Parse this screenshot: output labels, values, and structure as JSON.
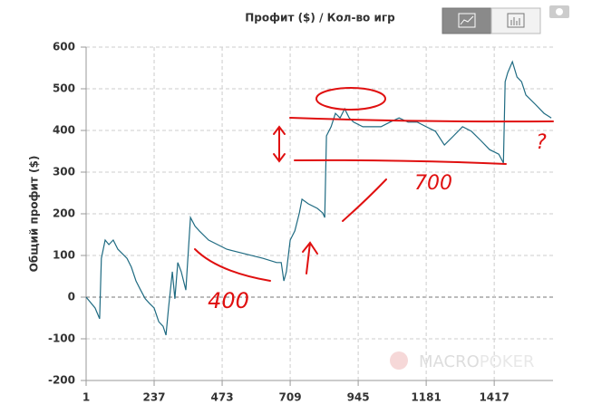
{
  "chart_data": {
    "type": "line",
    "title": "Профит ($) / Кол-во игр",
    "y_label": "Общий профит ($)",
    "watermark": [
      "MACRO",
      "POKER"
    ],
    "annotations": [
      "400",
      "700",
      "?"
    ],
    "xlim": [
      1,
      1621
    ],
    "xticks": [
      1,
      237,
      473,
      709,
      945,
      1181,
      1417
    ],
    "ylim": [
      -200,
      600
    ],
    "yticks": [
      -200,
      -100,
      0,
      100,
      200,
      300,
      400,
      500,
      600
    ],
    "grid": true,
    "series": [
      {
        "color": "#1f6b82",
        "x": [
          1,
          32,
          48,
          54,
          67,
          80,
          95,
          111,
          127,
          143,
          158,
          174,
          190,
          206,
          221,
          237,
          253,
          268,
          278,
          287,
          300,
          309,
          319,
          331,
          347,
          363,
          379,
          394,
          426,
          457,
          489,
          552,
          615,
          662,
          678,
          687,
          696,
          709,
          725,
          741,
          750,
          772,
          803,
          822,
          829,
          835,
          851,
          866,
          882,
          898,
          914,
          929,
          961,
          992,
          1024,
          1055,
          1087,
          1118,
          1150,
          1181,
          1213,
          1244,
          1276,
          1307,
          1338,
          1370,
          1401,
          1433,
          1449,
          1455,
          1464,
          1480,
          1496,
          1512,
          1527,
          1559,
          1590,
          1615
        ],
        "values": [
          0,
          -26,
          -52,
          93,
          137,
          126,
          137,
          115,
          104,
          93,
          72,
          39,
          17,
          -4,
          -15,
          -26,
          -59,
          -70,
          -91,
          -26,
          61,
          -4,
          83,
          61,
          17,
          191,
          170,
          159,
          137,
          126,
          115,
          104,
          93,
          83,
          83,
          39,
          61,
          137,
          159,
          202,
          235,
          224,
          213,
          202,
          191,
          387,
          409,
          441,
          430,
          452,
          430,
          420,
          409,
          409,
          409,
          420,
          430,
          420,
          420,
          409,
          398,
          365,
          387,
          409,
          398,
          376,
          354,
          343,
          322,
          517,
          539,
          565,
          528,
          517,
          485,
          463,
          441,
          430
        ]
      }
    ]
  }
}
